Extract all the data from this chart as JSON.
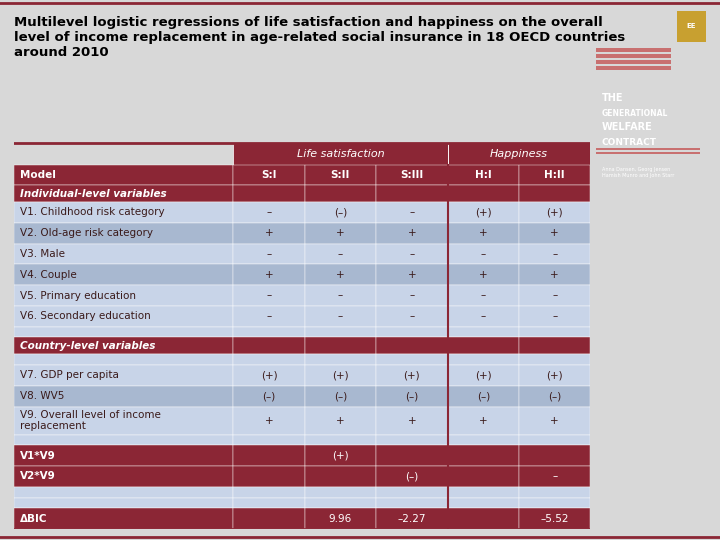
{
  "title": "Multilevel logistic regressions of life satisfaction and happiness on the overall\nlevel of income replacement in age-related social insurance in 18 OECD countries\naround 2010",
  "header_group1": "Life satisfaction",
  "header_group2": "Happiness",
  "col_headers": [
    "S:I",
    "S:II",
    "S:III",
    "H:I",
    "H:II"
  ],
  "row_labels": [
    "Model",
    "Individual-level variables",
    "V1. Childhood risk category",
    "V2. Old-age risk category",
    "V3. Male",
    "V4. Couple",
    "V5. Primary education",
    "V6. Secondary education",
    "",
    "Country-level variables",
    "",
    "V7. GDP per capita",
    "V8. WV5",
    "V9. Overall level of income\nreplacement",
    "",
    "V1*V9",
    "V2*V9",
    "",
    "",
    "ΔBIC"
  ],
  "cell_data": [
    [
      "S:I",
      "S:II",
      "S:III",
      "H:I",
      "H:II"
    ],
    [
      "",
      "",
      "",
      "",
      ""
    ],
    [
      "–",
      "(–)",
      "–",
      "(+)",
      "(+)"
    ],
    [
      "+",
      "+",
      "+",
      "+",
      "+"
    ],
    [
      "–",
      "–",
      "–",
      "–",
      "–"
    ],
    [
      "+",
      "+",
      "+",
      "+",
      "+"
    ],
    [
      "–",
      "–",
      "–",
      "–",
      "–"
    ],
    [
      "–",
      "–",
      "–",
      "–",
      "–"
    ],
    [
      "",
      "",
      "",
      "",
      ""
    ],
    [
      "",
      "",
      "",
      "",
      ""
    ],
    [
      "",
      "",
      "",
      "",
      ""
    ],
    [
      "(+)",
      "(+)",
      "(+)",
      "(+)",
      "(+)"
    ],
    [
      "(–)",
      "(–)",
      "(–)",
      "(–)",
      "(–)"
    ],
    [
      "+",
      "+",
      "+",
      "+",
      "+"
    ],
    [
      "",
      "",
      "",
      "",
      ""
    ],
    [
      "",
      "(+)",
      "",
      "",
      ""
    ],
    [
      "",
      "",
      "(–)",
      "",
      "–"
    ],
    [
      "",
      "",
      "",
      "",
      ""
    ],
    [
      "",
      "",
      "",
      "",
      ""
    ],
    [
      "",
      "9.96",
      "–2.27",
      "",
      "–5.52"
    ]
  ],
  "bg_dark": "#8b2635",
  "bg_light_blue": "#c8d4e8",
  "bg_medium_blue": "#a8b8d0",
  "bg_white": "#ffffff",
  "bg_page": "#d8d8d8",
  "text_dark": "#3a1a1a",
  "text_white": "#ffffff",
  "book_bg": "#a01825",
  "separator_color": "#8b2635"
}
